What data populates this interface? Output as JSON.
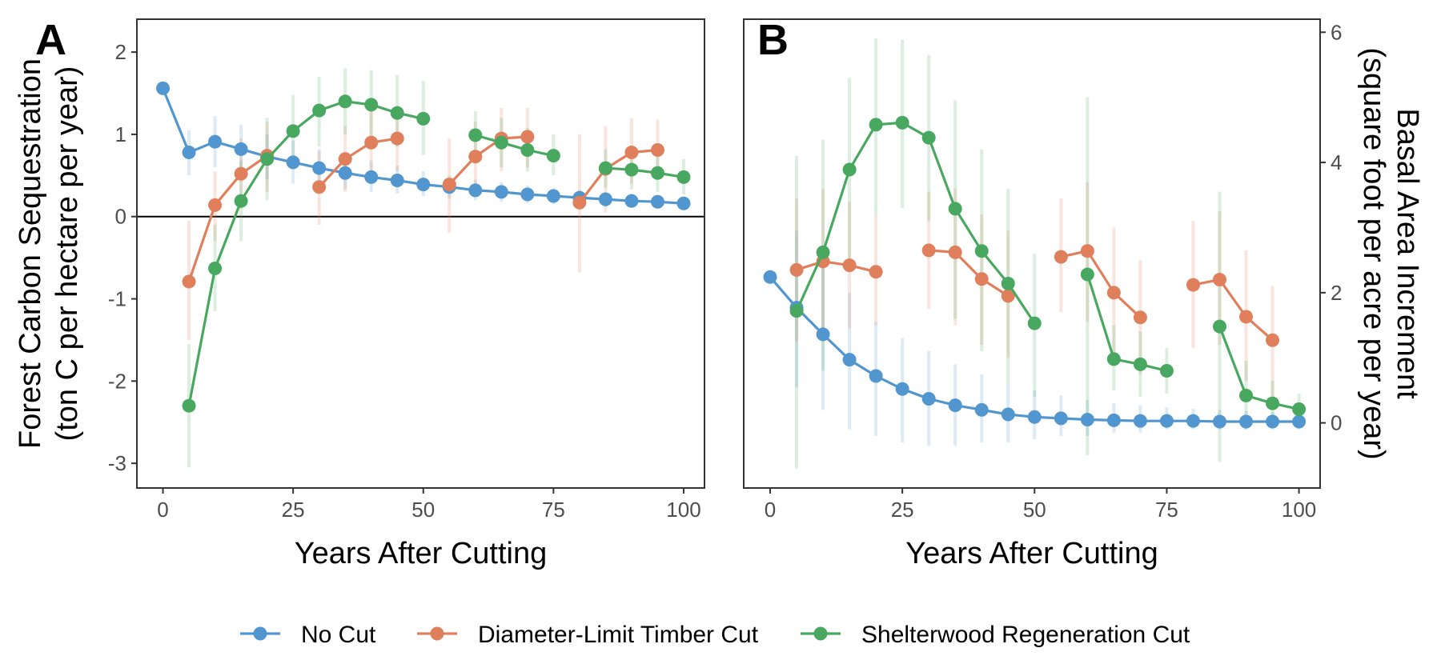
{
  "legend": [
    {
      "label": "No Cut",
      "color": "#5296d0"
    },
    {
      "label": "Diameter-Limit Timber Cut",
      "color": "#e07f5c"
    },
    {
      "label": "Shelterwood Regeneration Cut",
      "color": "#49a85f"
    }
  ],
  "chart_data": [
    {
      "type": "line",
      "panel_label": "A",
      "xlabel": "Years After Cutting",
      "ylabel": [
        "Forest Carbon Sequestration",
        "(ton C per hectare per year)"
      ],
      "xlim": [
        -5,
        104
      ],
      "ylim": [
        -3.3,
        2.4
      ],
      "xticks": [
        0,
        25,
        50,
        75,
        100
      ],
      "yticks": [
        -3,
        -2,
        -1,
        0,
        1,
        2
      ],
      "hline": 0,
      "grid": false,
      "series": [
        {
          "name": "No Cut",
          "color": "#5296d0",
          "segments": [
            {
              "x": [
                0,
                5,
                10,
                15,
                20,
                25,
                30,
                35,
                40,
                45,
                50,
                55,
                60,
                65,
                70,
                75,
                80,
                85,
                90,
                95,
                100
              ],
              "y": [
                1.56,
                0.78,
                0.91,
                0.82,
                0.73,
                0.66,
                0.59,
                0.53,
                0.48,
                0.44,
                0.39,
                0.36,
                0.32,
                0.3,
                0.27,
                0.25,
                0.23,
                0.21,
                0.19,
                0.18,
                0.16
              ],
              "lo": [
                null,
                0.5,
                0.6,
                0.55,
                0.45,
                0.4,
                0.38,
                0.33,
                0.3,
                0.28,
                0.25,
                0.22,
                0.2,
                0.18,
                0.16,
                0.15,
                0.14,
                0.12,
                0.11,
                0.1,
                0.09
              ],
              "hi": [
                null,
                1.05,
                1.22,
                1.12,
                1.0,
                0.92,
                0.82,
                0.75,
                0.68,
                0.62,
                0.55,
                0.5,
                0.45,
                0.42,
                0.38,
                0.35,
                0.32,
                0.3,
                0.28,
                0.26,
                0.24
              ]
            }
          ]
        },
        {
          "name": "Diameter-Limit Timber Cut",
          "color": "#e07f5c",
          "segments": [
            {
              "x": [
                5,
                10,
                15,
                20
              ],
              "y": [
                -0.79,
                0.14,
                0.52,
                0.74
              ],
              "lo": [
                -1.5,
                -0.3,
                0.1,
                0.3
              ],
              "hi": [
                -0.05,
                0.55,
                0.95,
                1.15
              ]
            },
            {
              "x": [
                30,
                35,
                40,
                45
              ],
              "y": [
                0.36,
                0.7,
                0.9,
                0.95
              ],
              "lo": [
                -0.1,
                0.3,
                0.5,
                0.55
              ],
              "hi": [
                0.8,
                1.1,
                1.3,
                1.35
              ]
            },
            {
              "x": [
                55,
                60,
                65,
                70
              ],
              "y": [
                0.39,
                0.73,
                0.95,
                0.97
              ],
              "lo": [
                -0.2,
                0.3,
                0.55,
                0.6
              ],
              "hi": [
                0.95,
                1.15,
                1.32,
                1.32
              ]
            },
            {
              "x": [
                80,
                85,
                90,
                95
              ],
              "y": [
                0.17,
                0.58,
                0.78,
                0.81
              ],
              "lo": [
                -0.68,
                0.05,
                0.4,
                0.45
              ],
              "hi": [
                1.0,
                1.1,
                1.2,
                1.18
              ]
            }
          ]
        },
        {
          "name": "Shelterwood Regeneration Cut",
          "color": "#49a85f",
          "segments": [
            {
              "x": [
                5,
                10,
                15,
                20,
                25,
                30,
                35,
                40,
                45,
                50
              ],
              "y": [
                -2.3,
                -0.63,
                0.19,
                0.7,
                1.04,
                1.29,
                1.4,
                1.36,
                1.26,
                1.19
              ],
              "lo": [
                -3.05,
                -1.15,
                -0.3,
                0.2,
                0.6,
                0.85,
                1.0,
                0.95,
                0.85,
                0.75
              ],
              "hi": [
                -1.55,
                -0.1,
                0.68,
                1.2,
                1.48,
                1.7,
                1.8,
                1.78,
                1.72,
                1.65
              ]
            },
            {
              "x": [
                60,
                65,
                70,
                75
              ],
              "y": [
                0.99,
                0.9,
                0.81,
                0.74
              ],
              "lo": [
                0.7,
                0.6,
                0.55,
                0.5
              ],
              "hi": [
                1.28,
                1.2,
                1.08,
                1.0
              ]
            },
            {
              "x": [
                85,
                90,
                95,
                100
              ],
              "y": [
                0.59,
                0.57,
                0.53,
                0.48
              ],
              "lo": [
                0.35,
                0.33,
                0.3,
                0.27
              ],
              "hi": [
                0.82,
                0.8,
                0.76,
                0.7
              ]
            }
          ]
        }
      ]
    },
    {
      "type": "line",
      "panel_label": "B",
      "xlabel": "Years After Cutting",
      "ylabel": [
        "Basal Area Increment",
        "(square foot per acre per year)"
      ],
      "ylabel_side": "right",
      "xlim": [
        -5,
        104
      ],
      "ylim": [
        -1.0,
        6.2
      ],
      "xticks": [
        0,
        25,
        50,
        75,
        100
      ],
      "yticks": [
        0,
        2,
        4,
        6
      ],
      "grid": false,
      "series": [
        {
          "name": "No Cut",
          "color": "#5296d0",
          "segments": [
            {
              "x": [
                0,
                5,
                10,
                15,
                20,
                25,
                30,
                35,
                40,
                45,
                50,
                55,
                60,
                65,
                70,
                75,
                80,
                85,
                90,
                95,
                100
              ],
              "y": [
                2.24,
                1.77,
                1.36,
                0.97,
                0.72,
                0.52,
                0.37,
                0.27,
                0.2,
                0.13,
                0.09,
                0.07,
                0.05,
                0.04,
                0.03,
                0.03,
                0.03,
                0.02,
                0.02,
                0.02,
                0.02
              ],
              "lo": [
                null,
                0.55,
                0.2,
                -0.1,
                -0.2,
                -0.3,
                -0.35,
                -0.35,
                -0.3,
                -0.3,
                -0.25,
                -0.2,
                -0.2,
                -0.15,
                -0.15,
                -0.1,
                -0.1,
                -0.1,
                -0.1,
                -0.1,
                -0.1
              ],
              "hi": [
                null,
                2.95,
                2.4,
                2.0,
                1.55,
                1.3,
                1.1,
                0.9,
                0.75,
                0.6,
                0.5,
                0.42,
                0.35,
                0.3,
                0.27,
                0.24,
                0.22,
                0.2,
                0.18,
                0.17,
                0.16
              ]
            }
          ]
        },
        {
          "name": "Diameter-Limit Timber Cut",
          "color": "#e07f5c",
          "segments": [
            {
              "x": [
                5,
                10,
                15,
                20
              ],
              "y": [
                2.35,
                2.48,
                2.42,
                2.32
              ],
              "lo": [
                1.25,
                1.4,
                1.45,
                1.5
              ],
              "hi": [
                3.45,
                3.6,
                3.4,
                3.2
              ]
            },
            {
              "x": [
                30,
                35,
                40,
                45
              ],
              "y": [
                2.65,
                2.62,
                2.21,
                1.95
              ],
              "lo": [
                1.75,
                1.5,
                1.2,
                1.0
              ],
              "hi": [
                3.55,
                3.6,
                3.2,
                2.95
              ]
            },
            {
              "x": [
                55,
                60,
                65,
                70
              ],
              "y": [
                2.55,
                2.64,
                2.0,
                1.62
              ],
              "lo": [
                1.7,
                1.55,
                1.05,
                0.75
              ],
              "hi": [
                3.45,
                3.7,
                3.0,
                2.5
              ]
            },
            {
              "x": [
                80,
                85,
                90,
                95
              ],
              "y": [
                2.12,
                2.2,
                1.63,
                1.27
              ],
              "lo": [
                1.15,
                1.2,
                0.65,
                0.35
              ],
              "hi": [
                3.1,
                3.25,
                2.65,
                2.1
              ]
            }
          ]
        },
        {
          "name": "Shelterwood Regeneration Cut",
          "color": "#49a85f",
          "segments": [
            {
              "x": [
                5,
                10,
                15,
                20,
                25,
                30,
                35,
                40,
                45,
                50
              ],
              "y": [
                1.72,
                2.62,
                3.89,
                4.58,
                4.61,
                4.38,
                3.29,
                2.64,
                2.14,
                1.53
              ],
              "lo": [
                -0.7,
                0.8,
                2.5,
                3.2,
                3.3,
                3.1,
                1.6,
                1.1,
                0.6,
                0.4
              ],
              "hi": [
                4.1,
                4.35,
                5.3,
                5.9,
                5.88,
                5.65,
                4.95,
                4.2,
                3.6,
                2.6
              ]
            },
            {
              "x": [
                60,
                65,
                70,
                75
              ],
              "y": [
                2.28,
                0.98,
                0.9,
                0.8
              ],
              "lo": [
                -0.5,
                0.5,
                0.4,
                0.45
              ],
              "hi": [
                5.0,
                1.5,
                1.4,
                1.15
              ]
            },
            {
              "x": [
                85,
                90,
                95,
                100
              ],
              "y": [
                1.48,
                0.42,
                0.3,
                0.21
              ],
              "lo": [
                -0.6,
                -0.1,
                -0.05,
                0.0
              ],
              "hi": [
                3.55,
                0.95,
                0.65,
                0.45
              ]
            }
          ]
        }
      ]
    }
  ]
}
